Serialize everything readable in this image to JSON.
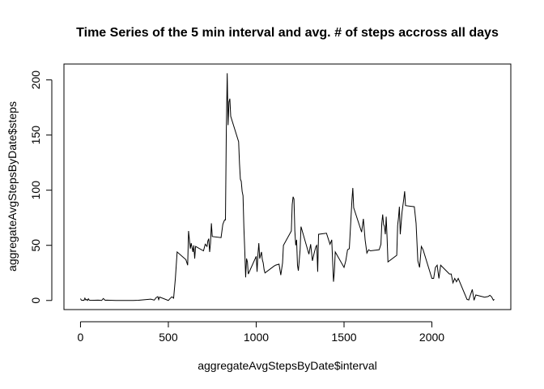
{
  "chart_data": {
    "type": "line",
    "title": "Time Series of the 5 min interval and avg. # of steps accross all days",
    "x_label": "aggregateAvgStepsByDate$interval",
    "y_label": "aggregateAvgStepsByDate$steps",
    "x": [
      0,
      5,
      10,
      15,
      20,
      25,
      30,
      35,
      40,
      45,
      50,
      55,
      100,
      110,
      120,
      130,
      140,
      150,
      200,
      230,
      300,
      330,
      400,
      420,
      430,
      440,
      445,
      450,
      500,
      510,
      520,
      530,
      540,
      550,
      600,
      610,
      615,
      625,
      630,
      640,
      645,
      650,
      655,
      700,
      710,
      720,
      725,
      730,
      735,
      740,
      745,
      750,
      800,
      810,
      820,
      825,
      830,
      835,
      840,
      845,
      850,
      855,
      900,
      905,
      910,
      915,
      920,
      925,
      930,
      935,
      940,
      945,
      950,
      955,
      1000,
      1005,
      1010,
      1015,
      1020,
      1030,
      1035,
      1040,
      1045,
      1050,
      1100,
      1110,
      1130,
      1140,
      1150,
      1155,
      1200,
      1205,
      1210,
      1215,
      1220,
      1225,
      1230,
      1235,
      1240,
      1250,
      1255,
      1300,
      1310,
      1320,
      1330,
      1340,
      1345,
      1350,
      1355,
      1400,
      1410,
      1420,
      1430,
      1440,
      1445,
      1450,
      1500,
      1510,
      1520,
      1530,
      1545,
      1550,
      1555,
      1600,
      1610,
      1620,
      1630,
      1640,
      1650,
      1700,
      1710,
      1715,
      1720,
      1725,
      1730,
      1735,
      1740,
      1745,
      1750,
      1800,
      1805,
      1810,
      1815,
      1820,
      1830,
      1840,
      1845,
      1850,
      1900,
      1910,
      1920,
      1930,
      1940,
      1950,
      2000,
      2010,
      2020,
      2030,
      2040,
      2050,
      2100,
      2110,
      2120,
      2130,
      2140,
      2150,
      2200,
      2210,
      2230,
      2240,
      2250,
      2300,
      2320,
      2330,
      2340,
      2350,
      2355
    ],
    "series": [
      {
        "name": "steps",
        "color": "#000000",
        "values": [
          1.7,
          0.3,
          0.1,
          0.2,
          0.1,
          2.1,
          0.5,
          0.9,
          0,
          1.5,
          0.3,
          0.1,
          0.3,
          0.2,
          0,
          1.8,
          0.2,
          0.3,
          0,
          0,
          0,
          0.2,
          1.2,
          0.3,
          2.5,
          3.5,
          0.8,
          3.1,
          0,
          1.8,
          3.3,
          2.1,
          20,
          44,
          37,
          32,
          63,
          47,
          52,
          44,
          50,
          38,
          49,
          45,
          51,
          49,
          54,
          56,
          44,
          52,
          70,
          58,
          57,
          69,
          73,
          73,
          155,
          206,
          159,
          180,
          183,
          167,
          144,
          124,
          110,
          108,
          99,
          95,
          66,
          45,
          21,
          38,
          35,
          24,
          40,
          26,
          42,
          52,
          38,
          44,
          37,
          34,
          28,
          25,
          31,
          32,
          33,
          23,
          34,
          50,
          63,
          87,
          94,
          92,
          63,
          50,
          55,
          32,
          27,
          46,
          67,
          42,
          51,
          36,
          43,
          49,
          50,
          26,
          60,
          61,
          56,
          51,
          55,
          17,
          26,
          44,
          30,
          36,
          46,
          47,
          91,
          102,
          84,
          62,
          74,
          55,
          43,
          46,
          45,
          46,
          51,
          70,
          78,
          69,
          67,
          60,
          76,
          57,
          35,
          41,
          68,
          75,
          85,
          60,
          80,
          92,
          99,
          86,
          85,
          70,
          36,
          30,
          49,
          46,
          20,
          20,
          30,
          32,
          20,
          32,
          24,
          24,
          16,
          20,
          17,
          20,
          1,
          0.5,
          10,
          0.2,
          5,
          3,
          3.6,
          4.7,
          3.3,
          0.2,
          1.1
        ]
      }
    ],
    "xlim": [
      -94.2,
      2449.2
    ],
    "ylim": [
      -8.25,
      214.4
    ],
    "xticks": [
      0,
      500,
      1000,
      1500,
      2000
    ],
    "yticks": [
      0,
      50,
      100,
      150,
      200
    ]
  }
}
